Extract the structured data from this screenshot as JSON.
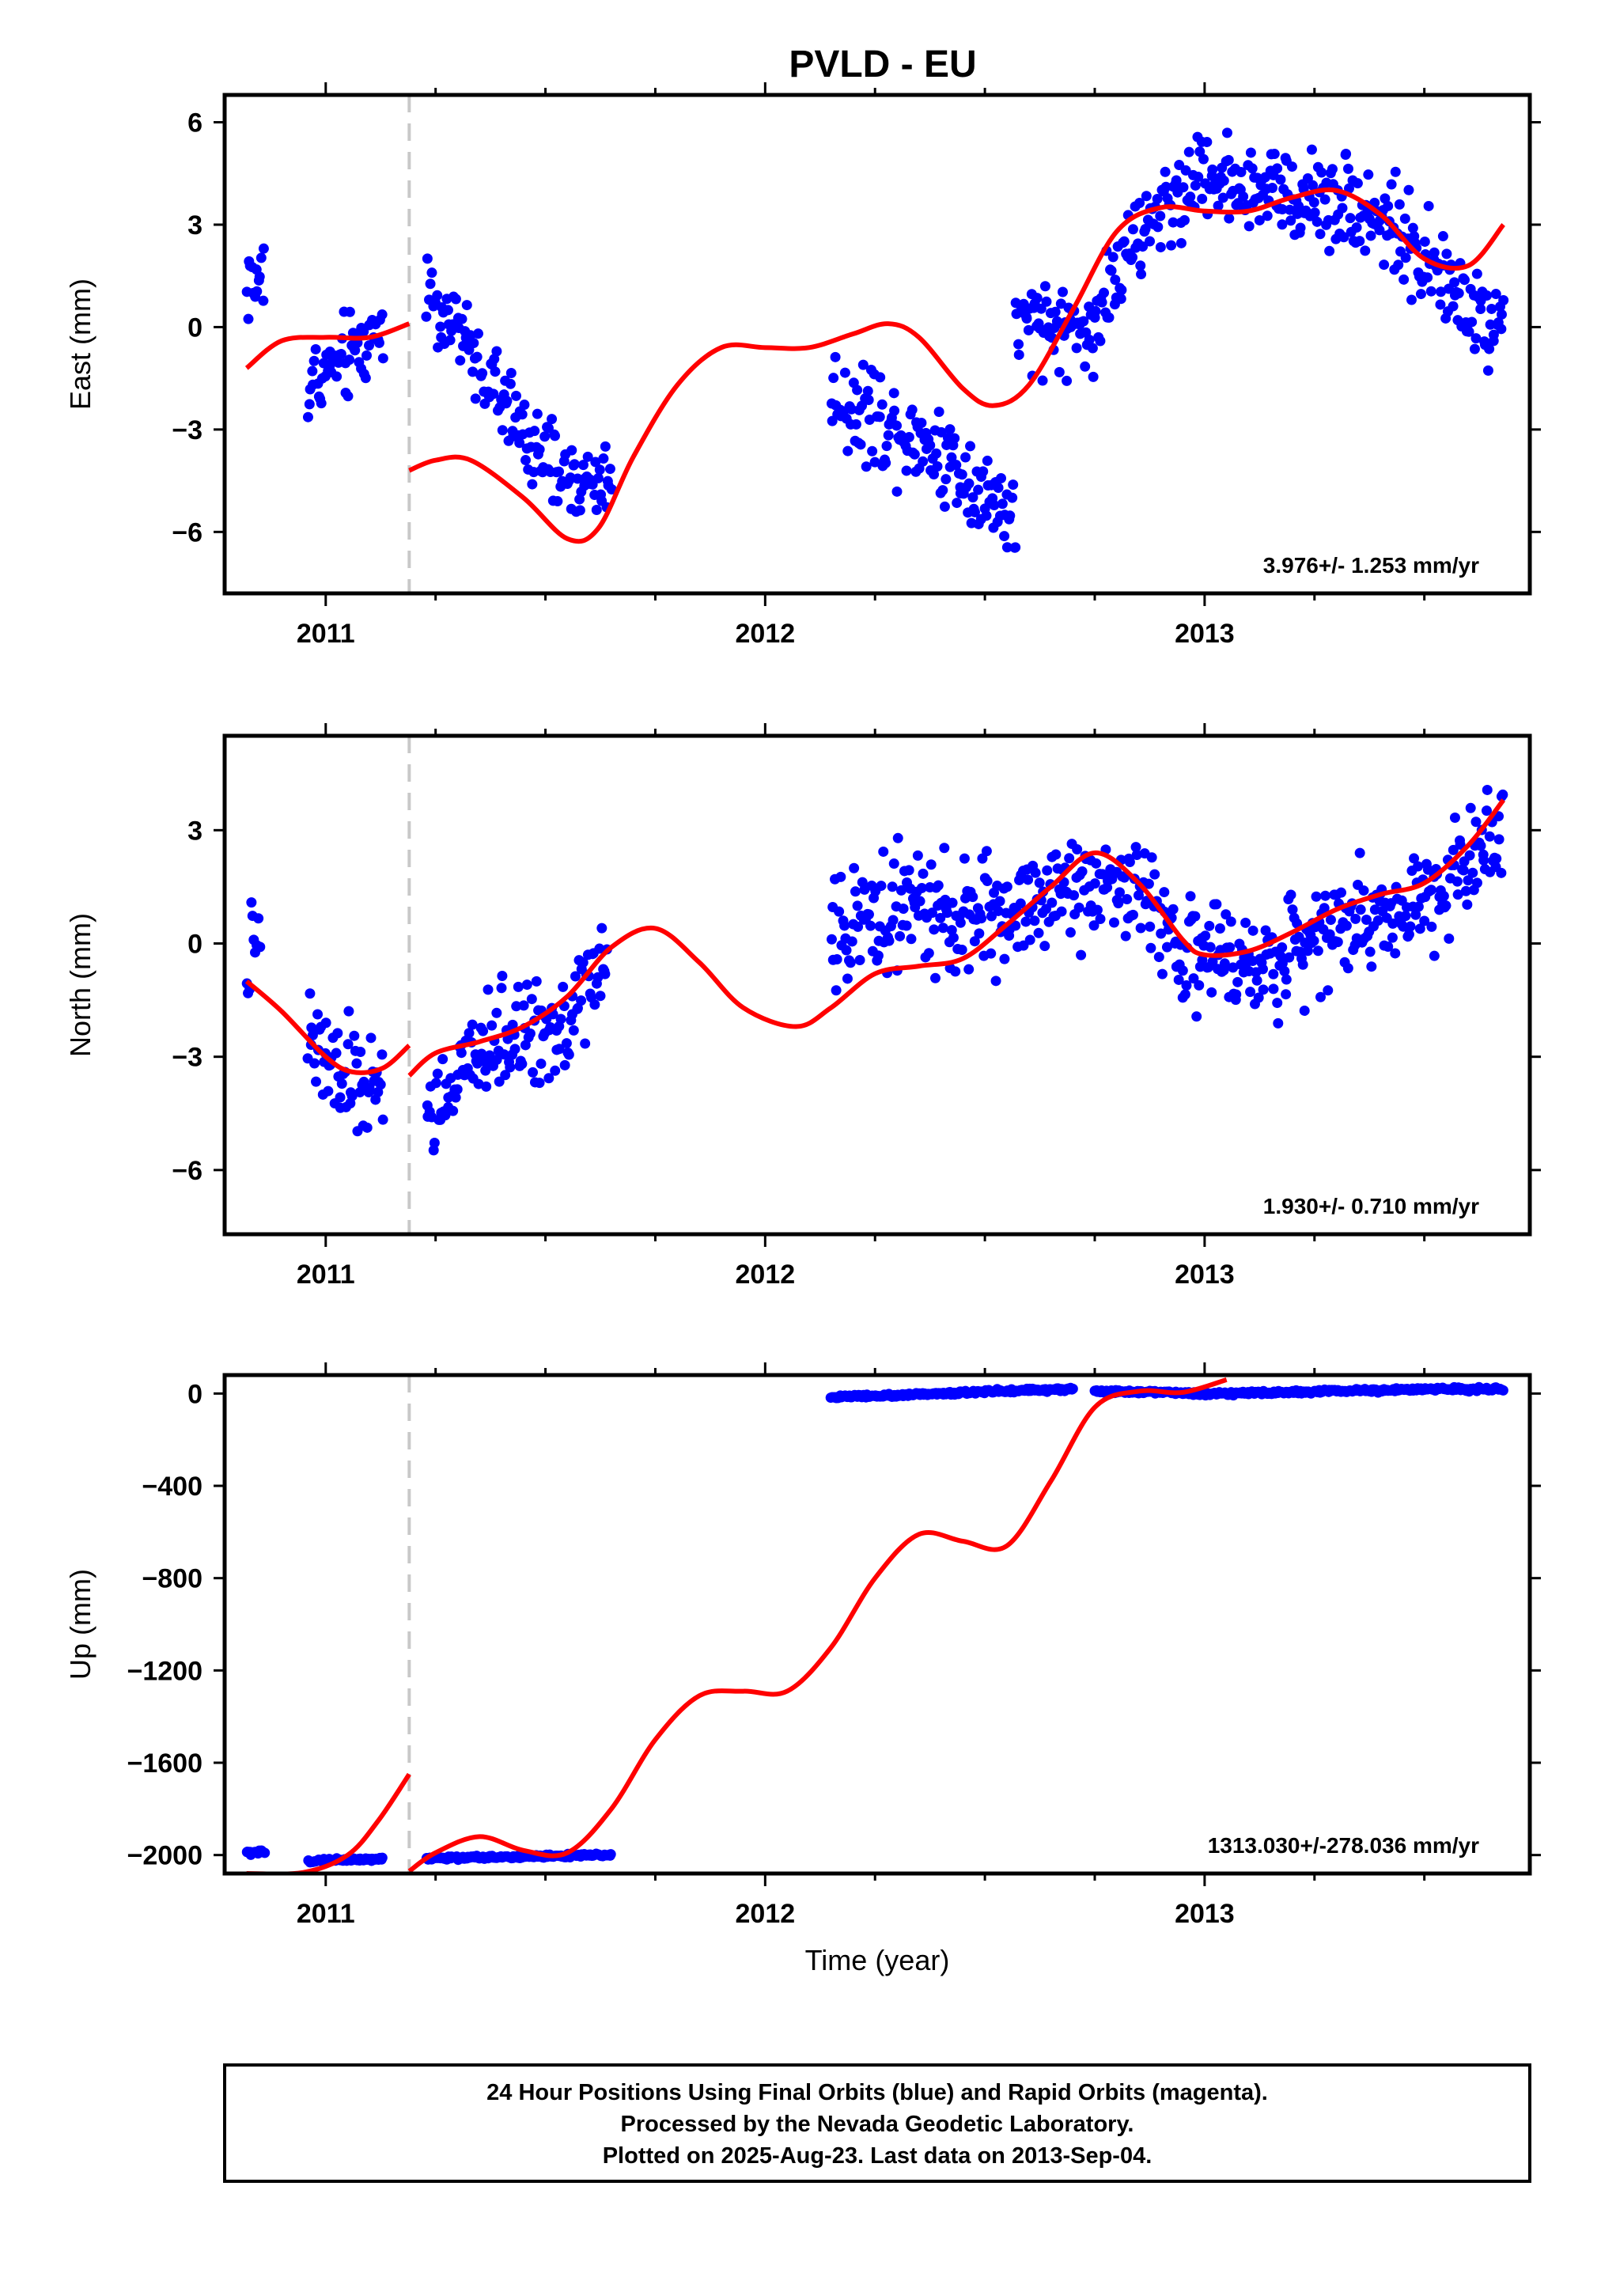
{
  "title": "PVLD - EU",
  "caption": {
    "line1": "24 Hour Positions Using Final Orbits (blue) and Rapid Orbits (magenta).",
    "line2": "Processed by the Nevada Geodetic Laboratory.",
    "line3": "Plotted on 2025-Aug-23. Last data on 2013-Sep-04."
  },
  "colors": {
    "data": "#0000ff",
    "model": "#ff0000",
    "break": "#c8c8c8"
  },
  "chart_data": [
    {
      "type": "scatter",
      "ylabel": "East (mm)",
      "xlabel": "",
      "xlim": [
        2010.77,
        2013.74
      ],
      "ylim": [
        -7.8,
        6.8
      ],
      "x_ticks": [
        2011,
        2012,
        2013
      ],
      "y_ticks": [
        6,
        3,
        0,
        -3,
        -6
      ],
      "rate": "3.976+/- 1.253 mm/yr",
      "break_epoch": 2011.19,
      "series": [
        {
          "role": "observations",
          "segments": [
            {
              "x": [
                2010.82,
                2010.86
              ],
              "y": [
                1.3,
                1.3
              ],
              "spread": 1.5
            },
            {
              "x": [
                2010.96,
                2011.0,
                2011.05,
                2011.1,
                2011.13
              ],
              "y": [
                -1.7,
                -1.3,
                -0.9,
                -0.4,
                0.3
              ],
              "spread": 1.4
            },
            {
              "x": [
                2011.23,
                2011.3,
                2011.37,
                2011.45,
                2011.52,
                2011.6,
                2011.65
              ],
              "y": [
                1.0,
                -0.1,
                -1.5,
                -3.1,
                -4.2,
                -4.6,
                -4.3
              ],
              "spread": 1.3
            },
            {
              "x": [
                2012.15,
                2012.25,
                2012.35,
                2012.45,
                2012.57
              ],
              "y": [
                -2.0,
                -2.6,
                -3.2,
                -4.2,
                -5.7
              ],
              "spread": 1.6
            },
            {
              "x": [
                2012.57,
                2012.65,
                2012.73,
                2012.8,
                2012.9,
                2013.0,
                2013.1,
                2013.2,
                2013.3,
                2013.4,
                2013.5,
                2013.6,
                2013.68
              ],
              "y": [
                -0.2,
                0.1,
                -0.2,
                1.5,
                3.5,
                4.5,
                4.2,
                3.8,
                3.8,
                3.3,
                2.0,
                0.5,
                0.3
              ],
              "spread": 1.5
            }
          ]
        },
        {
          "role": "model",
          "segments": [
            {
              "x": [
                2010.82,
                2010.9,
                2011.0,
                2011.1,
                2011.19
              ],
              "y": [
                -1.2,
                -0.4,
                -0.3,
                -0.3,
                0.1
              ]
            },
            {
              "x": [
                2011.19,
                2011.25,
                2011.33,
                2011.45,
                2011.55,
                2011.62,
                2011.7,
                2011.8,
                2011.9,
                2012.0,
                2012.1,
                2012.2,
                2012.28,
                2012.35,
                2012.45,
                2012.52,
                2012.6,
                2012.7,
                2012.8,
                2012.9,
                2013.0,
                2013.1,
                2013.2,
                2013.3,
                2013.4,
                2013.5,
                2013.6,
                2013.68
              ],
              "y": [
                -4.2,
                -3.9,
                -3.9,
                -5.0,
                -6.2,
                -5.9,
                -3.8,
                -1.7,
                -0.6,
                -0.6,
                -0.6,
                -0.2,
                0.1,
                -0.3,
                -1.8,
                -2.3,
                -1.7,
                0.5,
                2.8,
                3.5,
                3.4,
                3.4,
                3.8,
                4.0,
                3.3,
                2.0,
                1.8,
                3.0
              ]
            }
          ]
        }
      ]
    },
    {
      "type": "scatter",
      "ylabel": "North (mm)",
      "xlabel": "",
      "xlim": [
        2010.77,
        2013.74
      ],
      "ylim": [
        -7.7,
        5.5
      ],
      "x_ticks": [
        2011,
        2012,
        2013
      ],
      "y_ticks": [
        3,
        0,
        -3,
        -6
      ],
      "rate": "1.930+/- 0.710 mm/yr",
      "break_epoch": 2011.19,
      "series": [
        {
          "role": "observations",
          "segments": [
            {
              "x": [
                2010.82,
                2010.85
              ],
              "y": [
                -0.5,
                -0.3
              ],
              "spread": 1.6
            },
            {
              "x": [
                2010.96,
                2011.0,
                2011.05,
                2011.1,
                2011.13
              ],
              "y": [
                -2.6,
                -3.2,
                -3.6,
                -3.8,
                -3.7
              ],
              "spread": 1.6
            },
            {
              "x": [
                2011.23,
                2011.3,
                2011.38,
                2011.45,
                2011.52,
                2011.6,
                2011.64
              ],
              "y": [
                -4.5,
                -3.6,
                -2.6,
                -2.4,
                -2.2,
                -1.2,
                -0.3
              ],
              "spread": 1.5
            },
            {
              "x": [
                2012.15,
                2012.25,
                2012.35,
                2012.45,
                2012.55,
                2012.65,
                2012.75,
                2012.85,
                2012.95,
                2013.05,
                2013.15,
                2013.25,
                2013.35,
                2013.45,
                2013.55,
                2013.68
              ],
              "y": [
                0.2,
                0.8,
                1.0,
                0.6,
                0.9,
                1.2,
                1.8,
                1.4,
                -0.1,
                -0.6,
                -0.6,
                0.3,
                0.7,
                0.9,
                1.6,
                3.3
              ],
              "spread": 1.5
            }
          ]
        },
        {
          "role": "model",
          "segments": [
            {
              "x": [
                2010.82,
                2010.9,
                2011.0,
                2011.06,
                2011.13,
                2011.19
              ],
              "y": [
                -1.0,
                -1.8,
                -3.0,
                -3.4,
                -3.3,
                -2.7
              ]
            },
            {
              "x": [
                2011.19,
                2011.25,
                2011.35,
                2011.45,
                2011.55,
                2011.65,
                2011.75,
                2011.85,
                2011.95,
                2012.07,
                2012.15,
                2012.25,
                2012.35,
                2012.45,
                2012.55,
                2012.65,
                2012.75,
                2012.85,
                2012.95,
                2013.0,
                2013.1,
                2013.2,
                2013.3,
                2013.4,
                2013.5,
                2013.6,
                2013.68
              ],
              "y": [
                -3.5,
                -2.9,
                -2.6,
                -2.2,
                -1.4,
                -0.1,
                0.4,
                -0.5,
                -1.7,
                -2.2,
                -1.7,
                -0.8,
                -0.6,
                -0.4,
                0.5,
                1.5,
                2.4,
                1.6,
                0.1,
                -0.3,
                -0.2,
                0.3,
                0.9,
                1.3,
                1.6,
                2.6,
                3.8
              ]
            }
          ]
        }
      ]
    },
    {
      "type": "scatter",
      "ylabel": "Up (mm)",
      "xlabel": "Time (year)",
      "xlim": [
        2010.77,
        2013.74
      ],
      "ylim": [
        -2080,
        80
      ],
      "x_ticks": [
        2011,
        2012,
        2013
      ],
      "y_ticks": [
        0,
        -400,
        -800,
        -1200,
        -1600,
        -2000
      ],
      "rate": "1313.030+/-278.036 mm/yr",
      "break_epoch": 2011.19,
      "series": [
        {
          "role": "observations",
          "segments": [
            {
              "x": [
                2010.82,
                2010.86
              ],
              "y": [
                -1990,
                -1990
              ],
              "spread": 8
            },
            {
              "x": [
                2010.96,
                2011.04,
                2011.13
              ],
              "y": [
                -2025,
                -2020,
                -2018
              ],
              "spread": 8
            },
            {
              "x": [
                2011.23,
                2011.35,
                2011.5,
                2011.65
              ],
              "y": [
                -2015,
                -2010,
                -2005,
                -2000
              ],
              "spread": 8
            },
            {
              "x": [
                2012.15,
                2012.3,
                2012.45,
                2012.6,
                2012.7
              ],
              "y": [
                -15,
                -8,
                5,
                15,
                18
              ],
              "spread": 8
            },
            {
              "x": [
                2012.75,
                2012.9,
                2013.0,
                2013.1,
                2013.3,
                2013.5,
                2013.68
              ],
              "y": [
                10,
                5,
                0,
                2,
                10,
                18,
                20
              ],
              "spread": 8
            }
          ]
        },
        {
          "role": "model",
          "segments": [
            {
              "x": [
                2010.82,
                2010.95,
                2011.05,
                2011.12,
                2011.19
              ],
              "y": [
                -2080,
                -2075,
                -2000,
                -1850,
                -1650
              ]
            },
            {
              "x": [
                2011.19,
                2011.25,
                2011.35,
                2011.45,
                2011.55,
                2011.65,
                2011.75,
                2011.85,
                2011.95,
                2012.05,
                2012.15,
                2012.25,
                2012.35,
                2012.45,
                2012.55,
                2012.65,
                2012.75,
                2012.85,
                2012.95,
                2013.05
              ],
              "y": [
                -2070,
                -1990,
                -1920,
                -1980,
                -1990,
                -1800,
                -1500,
                -1310,
                -1290,
                -1290,
                -1100,
                -800,
                -610,
                -640,
                -660,
                -380,
                -60,
                10,
                5,
                60
              ]
            }
          ]
        }
      ]
    }
  ]
}
